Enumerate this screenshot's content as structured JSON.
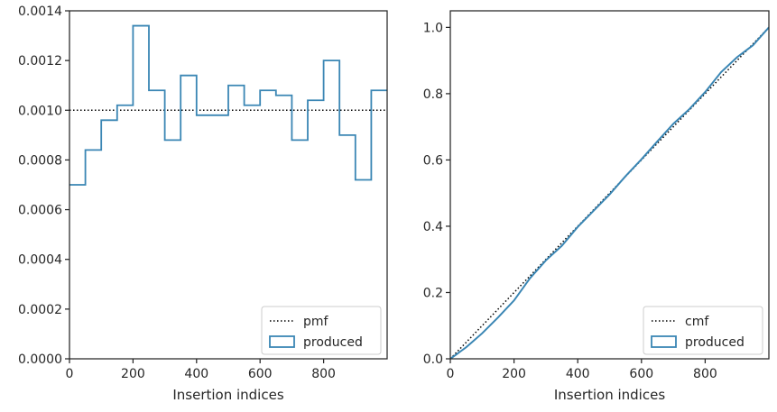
{
  "chart_data": [
    {
      "type": "step",
      "xlabel": "Insertion indices",
      "ylabel": "",
      "xlim": [
        0,
        1000
      ],
      "ylim": [
        0,
        0.0014
      ],
      "xticks": [
        0,
        200,
        400,
        600,
        800
      ],
      "xtick_labels": [
        "0",
        "200",
        "400",
        "600",
        "800"
      ],
      "yticks": [
        0,
        0.0002,
        0.0004,
        0.0006,
        0.0008,
        0.001,
        0.0012,
        0.0014
      ],
      "ytick_labels": [
        "0.0000",
        "0.0002",
        "0.0004",
        "0.0006",
        "0.0008",
        "0.0010",
        "0.0012",
        "0.0014"
      ],
      "bin_edges": [
        0,
        50,
        100,
        150,
        200,
        250,
        300,
        350,
        400,
        450,
        500,
        550,
        600,
        650,
        700,
        750,
        800,
        850,
        900,
        950,
        1000
      ],
      "series": [
        {
          "name": "pmf",
          "style": "dotted",
          "color": "#000000",
          "values": [
            0.001
          ]
        },
        {
          "name": "produced",
          "style": "step",
          "color": "#3a86b4",
          "values": [
            0.0007,
            0.00084,
            0.00096,
            0.00102,
            0.00134,
            0.00108,
            0.00088,
            0.00114,
            0.00098,
            0.00098,
            0.0011,
            0.00102,
            0.00108,
            0.00106,
            0.00088,
            0.00104,
            0.0012,
            0.0009,
            0.00072,
            0.00108
          ]
        }
      ],
      "legend": {
        "position": "lower-right",
        "entries": [
          "pmf",
          "produced"
        ]
      }
    },
    {
      "type": "line",
      "xlabel": "Insertion indices",
      "ylabel": "",
      "xlim": [
        0,
        1000
      ],
      "ylim": [
        0,
        1.05
      ],
      "xticks": [
        0,
        200,
        400,
        600,
        800
      ],
      "xtick_labels": [
        "0",
        "200",
        "400",
        "600",
        "800"
      ],
      "yticks": [
        0,
        0.2,
        0.4,
        0.6,
        0.8,
        1.0
      ],
      "ytick_labels": [
        "0.0",
        "0.2",
        "0.4",
        "0.6",
        "0.8",
        "1.0"
      ],
      "series": [
        {
          "name": "cmf",
          "style": "dotted",
          "color": "#000000",
          "x": [
            0,
            1000
          ],
          "y": [
            0,
            1.0
          ]
        },
        {
          "name": "produced",
          "style": "line",
          "color": "#3a86b4",
          "x": [
            0,
            50,
            100,
            150,
            200,
            250,
            300,
            350,
            400,
            450,
            500,
            550,
            600,
            650,
            700,
            750,
            800,
            850,
            900,
            950,
            1000
          ],
          "y": [
            0,
            0.035,
            0.077,
            0.125,
            0.176,
            0.243,
            0.297,
            0.341,
            0.398,
            0.447,
            0.496,
            0.551,
            0.602,
            0.656,
            0.709,
            0.753,
            0.805,
            0.865,
            0.91,
            0.946,
            1.0
          ]
        }
      ],
      "legend": {
        "position": "lower-right",
        "entries": [
          "cmf",
          "produced"
        ]
      }
    }
  ]
}
